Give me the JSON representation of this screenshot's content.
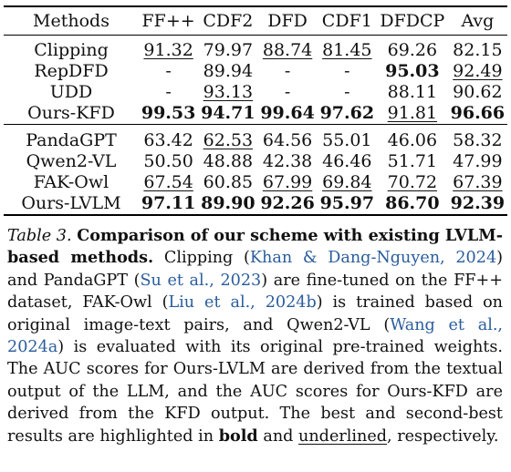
{
  "table": {
    "columns": [
      "Methods",
      "FF++",
      "CDF2",
      "DFD",
      "CDF1",
      "DFDCP",
      "Avg"
    ],
    "group1": [
      {
        "method": "Clipping",
        "cells": [
          {
            "v": "91.32",
            "s": "u"
          },
          {
            "v": "79.97",
            "s": ""
          },
          {
            "v": "88.74",
            "s": "u"
          },
          {
            "v": "81.45",
            "s": "u"
          },
          {
            "v": "69.26",
            "s": ""
          },
          {
            "v": "82.15",
            "s": ""
          }
        ]
      },
      {
        "method": "RepDFD",
        "cells": [
          {
            "v": "-",
            "s": ""
          },
          {
            "v": "89.94",
            "s": ""
          },
          {
            "v": "-",
            "s": ""
          },
          {
            "v": "-",
            "s": ""
          },
          {
            "v": "95.03",
            "s": "b"
          },
          {
            "v": "92.49",
            "s": "u"
          }
        ]
      },
      {
        "method": "UDD",
        "cells": [
          {
            "v": "-",
            "s": ""
          },
          {
            "v": "93.13",
            "s": "u"
          },
          {
            "v": "-",
            "s": ""
          },
          {
            "v": "-",
            "s": ""
          },
          {
            "v": "88.11",
            "s": ""
          },
          {
            "v": "90.62",
            "s": ""
          }
        ]
      },
      {
        "method": "Ours-KFD",
        "cells": [
          {
            "v": "99.53",
            "s": "b"
          },
          {
            "v": "94.71",
            "s": "b"
          },
          {
            "v": "99.64",
            "s": "b"
          },
          {
            "v": "97.62",
            "s": "b"
          },
          {
            "v": "91.81",
            "s": "u"
          },
          {
            "v": "96.66",
            "s": "b"
          }
        ]
      }
    ],
    "group2": [
      {
        "method": "PandaGPT",
        "cells": [
          {
            "v": "63.42",
            "s": ""
          },
          {
            "v": "62.53",
            "s": "u"
          },
          {
            "v": "64.56",
            "s": ""
          },
          {
            "v": "55.01",
            "s": ""
          },
          {
            "v": "46.06",
            "s": ""
          },
          {
            "v": "58.32",
            "s": ""
          }
        ]
      },
      {
        "method": "Qwen2-VL",
        "cells": [
          {
            "v": "50.50",
            "s": ""
          },
          {
            "v": "48.88",
            "s": ""
          },
          {
            "v": "42.38",
            "s": ""
          },
          {
            "v": "46.46",
            "s": ""
          },
          {
            "v": "51.71",
            "s": ""
          },
          {
            "v": "47.99",
            "s": ""
          }
        ]
      },
      {
        "method": "FAK-Owl",
        "cells": [
          {
            "v": "67.54",
            "s": "u"
          },
          {
            "v": "60.85",
            "s": ""
          },
          {
            "v": "67.99",
            "s": "u"
          },
          {
            "v": "69.84",
            "s": "u"
          },
          {
            "v": "70.72",
            "s": "u"
          },
          {
            "v": "67.39",
            "s": "u"
          }
        ]
      },
      {
        "method": "Ours-LVLM",
        "cells": [
          {
            "v": "97.11",
            "s": "b"
          },
          {
            "v": "89.90",
            "s": "b"
          },
          {
            "v": "92.26",
            "s": "b"
          },
          {
            "v": "95.97",
            "s": "b"
          },
          {
            "v": "86.70",
            "s": "b"
          },
          {
            "v": "92.39",
            "s": "b"
          }
        ]
      }
    ]
  },
  "caption": {
    "label": "Table 3.",
    "title": "Comparison of our scheme with existing LVLM-based methods.",
    "t1": "Clipping (",
    "c1": "Khan & Dang-Nguyen, 2024",
    "t2": ") and PandaGPT (",
    "c2": "Su et al., 2023",
    "t3": ") are fine-tuned on the FF++ dataset, FAK-Owl (",
    "c3": "Liu et al., 2024b",
    "t4": ") is trained based on original image-text pairs, and Qwen2-VL (",
    "c4": "Wang et al., 2024a",
    "t5": ") is evaluated with its original pre-trained weights. The AUC scores for Ours-LVLM are derived from the textual output of the LLM, and the AUC scores for Ours-KFD are derived from the KFD output. The best and second-best results are highlighted in ",
    "bold_word": "bold",
    "t6": " and ",
    "underlined_word": "underlined",
    "t7": ", respectively."
  }
}
